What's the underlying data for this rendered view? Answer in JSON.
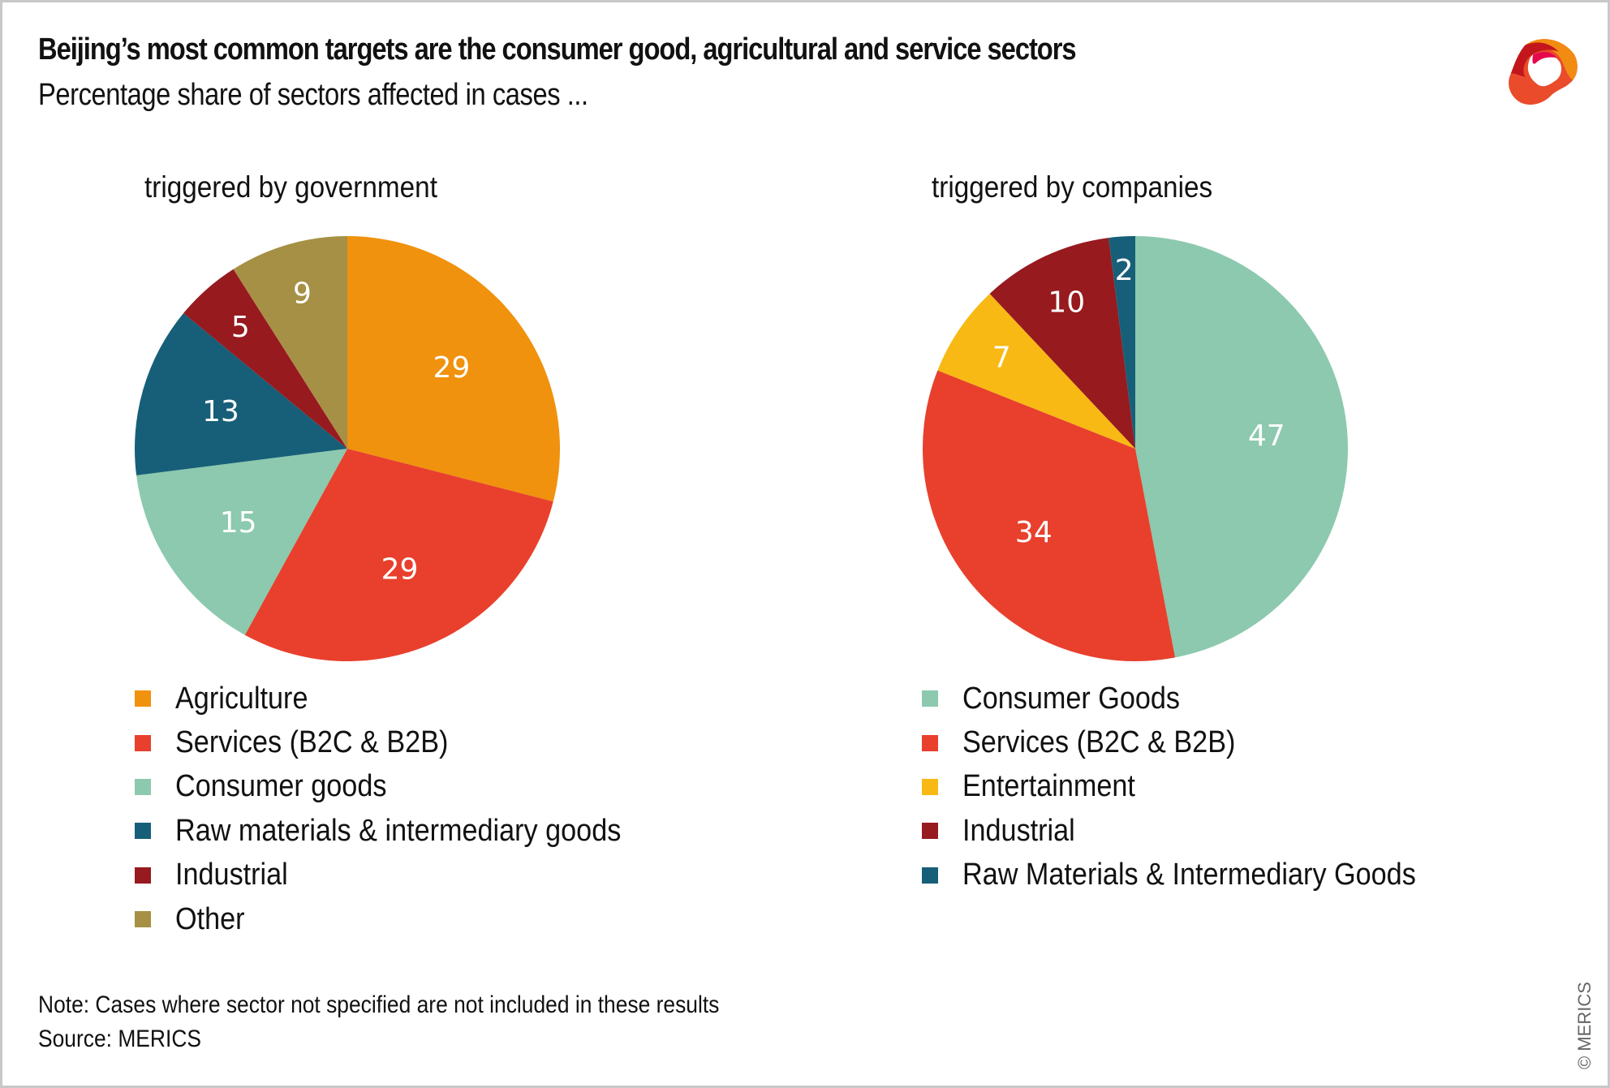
{
  "header": {
    "title": "Beijing’s most common targets are the consumer good, agricultural and service sectors",
    "subtitle": "Percentage share of sectors affected in cases ..."
  },
  "logo": {
    "name": "MERICS",
    "colors": [
      "#c2161c",
      "#e5094b",
      "#f28b12",
      "#e94b2b"
    ]
  },
  "footer": {
    "note": "Note: Cases where sector not specified are not included in these results",
    "source": "Source: MERICS"
  },
  "copyright": "© MERICS",
  "chart_data": [
    {
      "type": "pie",
      "title": "triggered by government",
      "unit": "%",
      "start": "12 o'clock, clockwise",
      "legend_placement": "bottom",
      "slices": [
        {
          "label": "Agriculture",
          "value": 29,
          "color": "#f0920d"
        },
        {
          "label": "Services (B2C & B2B)",
          "value": 29,
          "color": "#e8402d"
        },
        {
          "label": "Consumer goods",
          "value": 15,
          "color": "#8cc9ae"
        },
        {
          "label": "Raw materials & intermediary goods",
          "value": 13,
          "color": "#175f78"
        },
        {
          "label": "Industrial",
          "value": 5,
          "color": "#971a1f"
        },
        {
          "label": "Other",
          "value": 9,
          "color": "#a69045"
        }
      ]
    },
    {
      "type": "pie",
      "title": "triggered by companies",
      "unit": "%",
      "start": "12 o'clock, clockwise",
      "legend_placement": "bottom",
      "slices": [
        {
          "label": "Consumer Goods",
          "value": 47,
          "color": "#8cc9ae"
        },
        {
          "label": "Services (B2C & B2B)",
          "value": 34,
          "color": "#e8402d"
        },
        {
          "label": "Entertainment",
          "value": 7,
          "color": "#f8b914"
        },
        {
          "label": "Industrial",
          "value": 10,
          "color": "#971a1f"
        },
        {
          "label": "Raw Materials & Intermediary Goods",
          "value": 2,
          "color": "#175f78"
        }
      ]
    }
  ]
}
